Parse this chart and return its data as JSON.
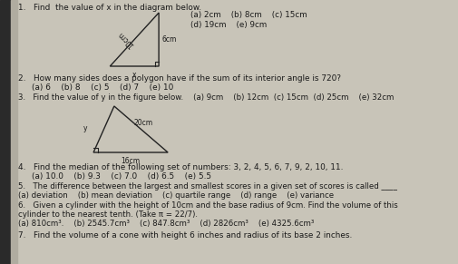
{
  "bg_color": "#c8c4b8",
  "paper_color": "#dddbd0",
  "text_color": "#1a1a1a",
  "spine_color": "#2a2a2a",
  "q1_header": "1.   Find  the value of x in the diagram below.",
  "q1_opts_a": "(a) 2cm    (b) 8cm    (c) 15cm",
  "q1_opts_b": "(d) 19cm    (e) 9cm",
  "q2": "2.   How many sides does a polygon have if the sum of its interior angle is 720?",
  "q2_opts": "(a) 6    (b) 8    (c) 5    (d) 7    (e) 10",
  "q3": "3.   Find the value of y in the figure below.    (a) 9cm    (b) 12cm  (c) 15cm  (d) 25cm    (e) 32cm",
  "q4": "4.   Find the median of the following set of numbers: 3, 2, 4, 5, 6, 7, 9, 2, 10, 11.",
  "q4_opts": "(a) 10.0    (b) 9.3    (c) 7.0    (d) 6.5    (e) 5.5",
  "q5_a": "5.   The difference between the largest and smallest scores in a given set of scores is called ____",
  "q5_b": "(a) deviation    (b) mean deviation    (c) quartile range    (d) range    (e) variance",
  "q6_a": "6.   Given a cylinder with the height of 10cm and the base radius of 9cm. Find the volume of this",
  "q6_b": "cylinder to the nearest tenth. (Take π = 22/7).",
  "q6_c": "(a) 810cm³.    (b) 2545.7cm³    (c) 847.8cm³    (d) 2826cm³    (e) 4325.6cm³",
  "q7": "7.   Find the volume of a cone with height 6 inches and radius of its base 2 inches.",
  "tri1_hyp": "10cm",
  "tri1_side": "6cm",
  "tri1_base": "x",
  "tri2_hyp": "20cm",
  "tri2_base": "16cm",
  "tri2_side": "y"
}
